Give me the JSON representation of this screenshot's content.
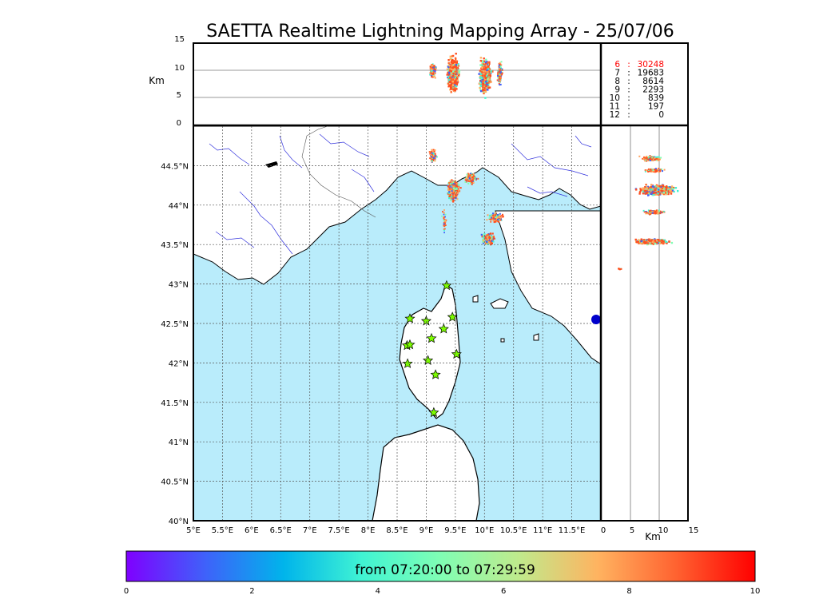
{
  "title": "SAETTA Realtime Lightning Mapping Array - 25/07/06",
  "altitude_axis": {
    "unit": "Km",
    "ticks": [
      "15",
      "10",
      "5",
      "0"
    ],
    "range": [
      0,
      15
    ]
  },
  "map": {
    "lon_range": [
      5,
      12
    ],
    "lat_range": [
      40,
      45
    ],
    "lon_ticks": [
      "5°E",
      "5.5°E",
      "6°E",
      "6.5°E",
      "7°E",
      "7.5°E",
      "8°E",
      "8.5°E",
      "9°E",
      "9.5°E",
      "10°E",
      "10.5°E",
      "11°E",
      "11.5°E"
    ],
    "lat_ticks": [
      "40°N",
      "40.5°N",
      "41°N",
      "41.5°N",
      "42°N",
      "42.5°N",
      "43°N",
      "43.5°N",
      "44°N",
      "44.5°N"
    ],
    "sea_color": "#b9ecfb",
    "land_color": "#ffffff",
    "river_color": "#3333dd",
    "station_icon": "star-icon",
    "station_color": "#7cfc00",
    "station_count": 13
  },
  "side_altitude_axis": {
    "unit": "Km",
    "ticks": [
      "0",
      "5",
      "10",
      "15"
    ]
  },
  "station_counts": [
    {
      "stations": "6",
      "sep": ":",
      "count": "30248",
      "color": "#ff0000"
    },
    {
      "stations": "7",
      "sep": ":",
      "count": "19683",
      "color": "#000000"
    },
    {
      "stations": "8",
      "sep": ":",
      "count": "8614",
      "color": "#000000"
    },
    {
      "stations": "9",
      "sep": ":",
      "count": "2293",
      "color": "#000000"
    },
    {
      "stations": "10",
      "sep": ":",
      "count": "839",
      "color": "#000000"
    },
    {
      "stations": "11",
      "sep": ":",
      "count": "197",
      "color": "#000000"
    },
    {
      "stations": "12",
      "sep": ":",
      "count": "0",
      "color": "#000000"
    }
  ],
  "colorbar": {
    "label": "from 07:20:00 to 07:29:59",
    "ticks": [
      "0",
      "2",
      "4",
      "6",
      "8",
      "10"
    ],
    "range": [
      0,
      10
    ],
    "colors": [
      "#7f00ff",
      "#3f61fa",
      "#00b4eb",
      "#40f4d3",
      "#80feb4",
      "#c0ea8c",
      "#ffb360",
      "#ff6230",
      "#ff0000"
    ]
  }
}
